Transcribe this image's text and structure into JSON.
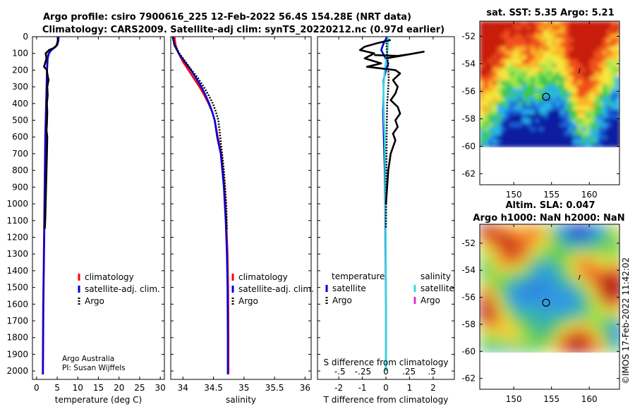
{
  "header": {
    "title_line1": "Argo profile: csiro 7900616_225 12-Feb-2022 56.4S 154.28E (NRT data)",
    "title_line2": "Climatology: CARS2009. Satellite-adj clim: synTS_20220212.nc (0.97d earlier)"
  },
  "credit": {
    "org": "Argo Australia",
    "pi": "PI: Susan Wijffels"
  },
  "stamp": "©IMOS 17-Feb-2022 11:42:02",
  "colors": {
    "climatology": "#ff0000",
    "satellite_adj": "#0000dd",
    "argo": "#000000",
    "sat_T": "#33dddd",
    "argo_S": "#dd33cc"
  },
  "chart_data": [
    {
      "type": "line",
      "name": "temperature",
      "xlabel": "temperature (deg C)",
      "ylabel": "",
      "xlim": [
        -1,
        31
      ],
      "ylim": [
        2050,
        0
      ],
      "xticks": [
        0,
        5,
        10,
        15,
        20,
        25,
        30
      ],
      "yticks": [
        0,
        100,
        200,
        300,
        400,
        500,
        600,
        700,
        800,
        900,
        1000,
        1100,
        1200,
        1300,
        1400,
        1500,
        1600,
        1700,
        1800,
        1900,
        2000
      ],
      "legend": [
        "climatology",
        "satellite-adj. clim.",
        "Argo"
      ],
      "series": [
        {
          "name": "climatology",
          "color": "#ff0000",
          "x": [
            5.3,
            5.2,
            4.9,
            4.3,
            3.5,
            2.9,
            2.6,
            2.5,
            2.4,
            2.3,
            2.2,
            2.1,
            2.0,
            1.9,
            1.8,
            1.7,
            1.6,
            1.55,
            1.5
          ],
          "y": [
            0,
            25,
            50,
            65,
            80,
            100,
            130,
            200,
            300,
            400,
            500,
            600,
            800,
            1000,
            1200,
            1400,
            1600,
            1800,
            2020
          ]
        },
        {
          "name": "satellite-adj. clim.",
          "color": "#0000dd",
          "x": [
            5.35,
            5.3,
            5.0,
            4.4,
            3.6,
            3.0,
            2.7,
            2.55,
            2.45,
            2.35,
            2.25,
            2.15,
            2.05,
            1.95,
            1.85,
            1.75,
            1.65,
            1.6,
            1.55
          ],
          "y": [
            0,
            25,
            50,
            65,
            80,
            100,
            130,
            200,
            300,
            400,
            500,
            600,
            800,
            1000,
            1200,
            1400,
            1600,
            1800,
            2020
          ]
        },
        {
          "name": "Argo",
          "color": "#000000",
          "x": [
            5.2,
            5.1,
            4.8,
            4.0,
            3.0,
            2.2,
            2.4,
            1.8,
            2.5,
            2.6,
            2.9,
            2.6,
            2.7,
            2.5,
            2.6,
            2.5,
            2.4,
            2.6,
            2.5,
            2.4,
            2.3,
            2.2,
            2.1,
            2.0
          ],
          "y": [
            5,
            30,
            55,
            70,
            80,
            100,
            130,
            180,
            200,
            220,
            260,
            300,
            350,
            400,
            450,
            520,
            560,
            600,
            700,
            800,
            900,
            1000,
            1100,
            1150
          ]
        }
      ]
    },
    {
      "type": "line",
      "name": "salinity",
      "xlabel": "salinity",
      "xlim": [
        33.8,
        36.1
      ],
      "ylim": [
        2050,
        0
      ],
      "xticks": [
        34,
        34.5,
        35,
        35.5,
        36
      ],
      "legend": [
        "climatology",
        "satellite-adj. clim.",
        "Argo"
      ],
      "series": [
        {
          "name": "climatology",
          "color": "#ff0000",
          "x": [
            33.86,
            33.88,
            33.93,
            34.0,
            34.09,
            34.18,
            34.27,
            34.35,
            34.42,
            34.48,
            34.52,
            34.57,
            34.63,
            34.68,
            34.71,
            34.73,
            34.74,
            34.745,
            34.745
          ],
          "y": [
            0,
            50,
            100,
            150,
            200,
            250,
            300,
            350,
            400,
            450,
            500,
            600,
            700,
            900,
            1100,
            1300,
            1500,
            1800,
            2020
          ]
        },
        {
          "name": "satellite-adj. clim.",
          "color": "#0000dd",
          "x": [
            33.83,
            33.86,
            33.93,
            34.03,
            34.13,
            34.22,
            34.3,
            34.37,
            34.43,
            34.48,
            34.52,
            34.56,
            34.62,
            34.67,
            34.7,
            34.72,
            34.73,
            34.735,
            34.735
          ],
          "y": [
            0,
            50,
            100,
            150,
            200,
            250,
            300,
            350,
            400,
            450,
            500,
            600,
            700,
            900,
            1100,
            1300,
            1500,
            1800,
            2020
          ]
        },
        {
          "name": "Argo",
          "color": "#000000",
          "x": [
            33.84,
            33.86,
            33.94,
            34.04,
            34.14,
            34.25,
            34.34,
            34.42,
            34.49,
            34.54,
            34.58,
            34.61,
            34.64,
            34.67,
            34.69,
            34.71,
            34.72
          ],
          "y": [
            5,
            50,
            100,
            150,
            200,
            250,
            300,
            350,
            400,
            450,
            500,
            600,
            700,
            800,
            900,
            1000,
            1150
          ]
        }
      ]
    },
    {
      "type": "line",
      "name": "difference",
      "xlabel": "T difference from climatology",
      "top_axis_label": "S difference from climatology",
      "xlim": [
        -2.9,
        2.9
      ],
      "ylim": [
        2050,
        0
      ],
      "xticks": [
        -2,
        -1,
        0,
        1,
        2
      ],
      "top_ticks": [
        -0.5,
        -0.25,
        0,
        0.25,
        0.5
      ],
      "legend_headers": [
        "temperature",
        "salinity"
      ],
      "legend": [
        "satellite",
        "Argo",
        "satellite",
        "Argo"
      ],
      "series": [
        {
          "name": "T satellite",
          "color": "#0000dd",
          "x": [
            0.05,
            -0.1,
            -0.2,
            -0.05,
            0.1,
            0.0,
            -0.1,
            -0.1,
            -0.12,
            -0.1,
            -0.08,
            -0.05,
            -0.03,
            -0.02,
            -0.01,
            0.0,
            0.0,
            0.0
          ],
          "y": [
            0,
            40,
            80,
            120,
            160,
            200,
            260,
            350,
            450,
            550,
            650,
            800,
            1000,
            1200,
            1400,
            1600,
            1800,
            2000
          ]
        },
        {
          "name": "S satellite",
          "color": "#33dddd",
          "x": [
            0.1,
            0.08,
            0.05,
            0.0,
            -0.05,
            -0.1,
            -0.1,
            -0.08,
            -0.05,
            -0.03,
            -0.02,
            -0.01,
            0.0,
            0.0,
            0.0,
            0.0
          ],
          "y": [
            0,
            50,
            100,
            150,
            200,
            300,
            400,
            500,
            600,
            800,
            1000,
            1200,
            1400,
            1600,
            1800,
            2000
          ]
        },
        {
          "name": "T Argo",
          "color": "#000000",
          "x": [
            0.2,
            -0.4,
            -0.9,
            -1.1,
            -0.5,
            -0.9,
            -0.2,
            -0.8,
            0.4,
            0.6,
            0.3,
            0.5,
            0.4,
            0.2,
            0.5,
            0.6,
            0.4,
            0.5,
            0.3,
            0.4,
            0.2,
            0.1,
            0.05,
            0.0
          ],
          "y": [
            20,
            40,
            60,
            80,
            100,
            130,
            160,
            180,
            200,
            220,
            260,
            300,
            340,
            380,
            420,
            460,
            500,
            540,
            580,
            620,
            700,
            800,
            900,
            1000
          ]
        },
        {
          "name": "S Argo (dotted)",
          "color": "#000000",
          "x": [
            0.02,
            0.03,
            0.05,
            0.08,
            0.1,
            0.12,
            0.1,
            0.08,
            0.05,
            0.04,
            0.03,
            0.02,
            0.01,
            0.0
          ],
          "y": [
            20,
            60,
            100,
            150,
            200,
            250,
            300,
            350,
            400,
            500,
            600,
            800,
            1000,
            1150
          ]
        },
        {
          "name": "T spike near surface",
          "color": "#000000",
          "x": [
            -0.5,
            0.5,
            1.0,
            1.6,
            0.6,
            0.0
          ],
          "y": [
            110,
            115,
            105,
            90,
            115,
            130
          ]
        }
      ]
    },
    {
      "type": "heatmap",
      "name": "sat_sst",
      "title": "sat. SST: 5.35 Argo: 5.21",
      "xlim": [
        145.5,
        164
      ],
      "ylim": [
        -62.8,
        -50.9
      ],
      "xticks": [
        150,
        155,
        160
      ],
      "yticks": [
        -52,
        -54,
        -56,
        -58,
        -60,
        -62
      ],
      "marker": {
        "lon": 154.28,
        "lat": -56.4
      }
    },
    {
      "type": "heatmap",
      "name": "altim_sla",
      "title_line1": "Altim. SLA: 0.047",
      "title_line2": "Argo h1000: NaN h2000: NaN",
      "xlim": [
        145.5,
        164
      ],
      "ylim": [
        -62.8,
        -50.6
      ],
      "xticks": [
        150,
        155,
        160
      ],
      "yticks": [
        -52,
        -54,
        -56,
        -58,
        -60,
        -62
      ],
      "marker": {
        "lon": 154.28,
        "lat": -56.4
      }
    }
  ]
}
